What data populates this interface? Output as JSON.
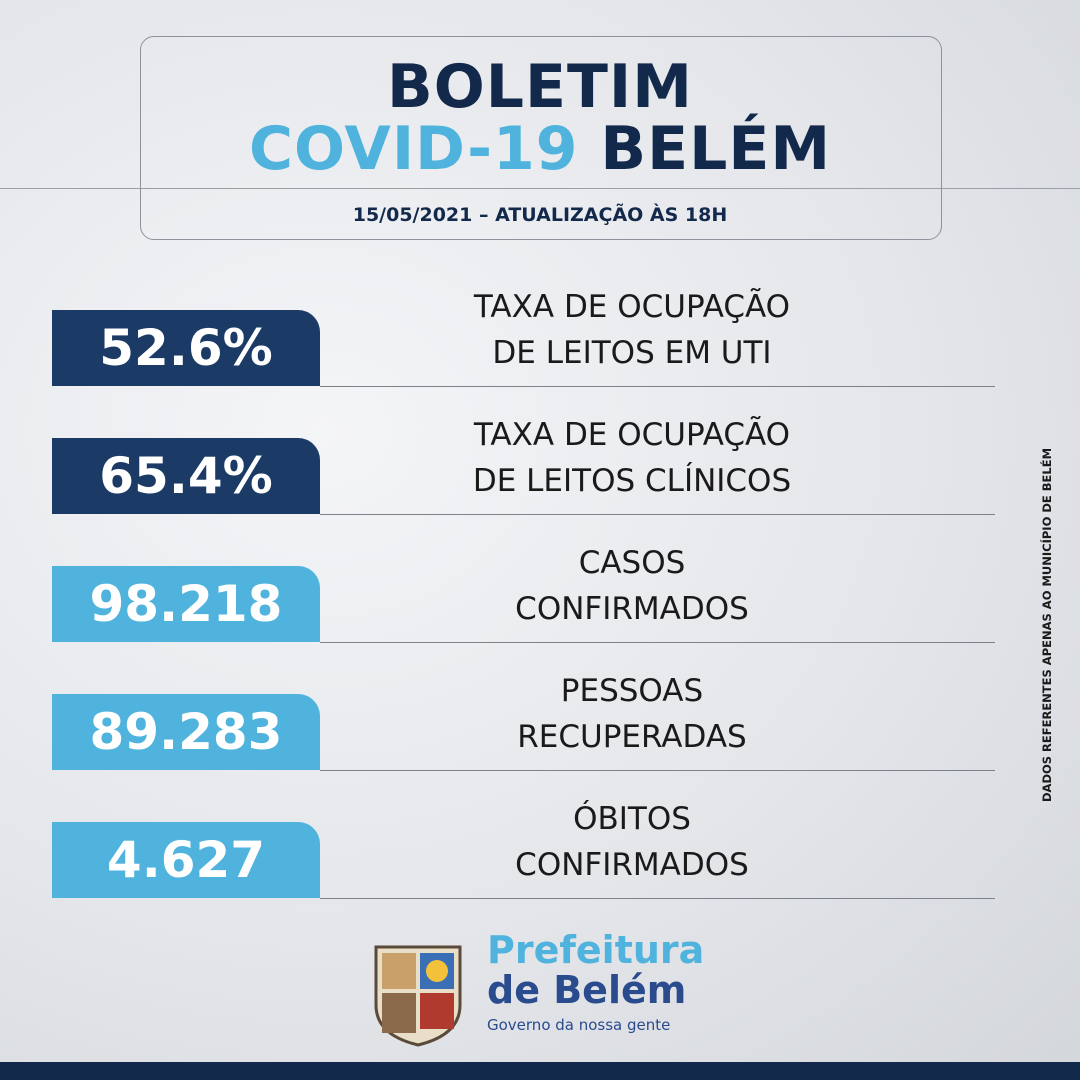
{
  "header": {
    "title_line1": "BOLETIM",
    "title_line2_a": "COVID-19",
    "title_line2_b": "BELÉM",
    "date": "15/05/2021 – ATUALIZAÇÃO ÀS 18H"
  },
  "rows": [
    {
      "value": "52.6%",
      "label_line1": "TAXA DE OCUPAÇÃO",
      "label_line2": "DE LEITOS EM UTI",
      "color": "#1b3a66"
    },
    {
      "value": "65.4%",
      "label_line1": "TAXA DE OCUPAÇÃO",
      "label_line2": "DE LEITOS CLÍNICOS",
      "color": "#1b3a66"
    },
    {
      "value": "98.218",
      "label_line1": "CASOS",
      "label_line2": "CONFIRMADOS",
      "color": "#4fb3dd"
    },
    {
      "value": "89.283",
      "label_line1": "PESSOAS",
      "label_line2": "RECUPERADAS",
      "color": "#4fb3dd"
    },
    {
      "value": "4.627",
      "label_line1": "ÓBITOS",
      "label_line2": "CONFIRMADOS",
      "color": "#4fb3dd"
    }
  ],
  "side_note": "DADOS REFERENTES APENAS AO MUNICÍPIO DE BELÉM",
  "logo": {
    "line1": "Prefeitura",
    "line2": "de Belém",
    "tagline": "Governo da nossa gente"
  }
}
